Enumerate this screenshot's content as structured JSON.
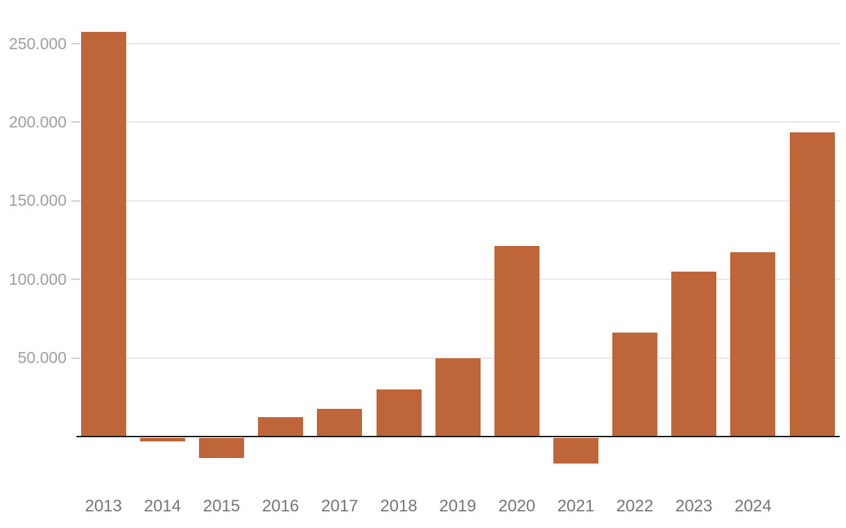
{
  "chart_data": {
    "type": "bar",
    "title": "",
    "xlabel": "",
    "ylabel": "",
    "categories": [
      "2013",
      "2014",
      "2015",
      "2016",
      "2017",
      "2018",
      "2019",
      "2020",
      "2021",
      "2022",
      "2023",
      "2024",
      ""
    ],
    "values": [
      257000,
      -2600,
      -12800,
      12000,
      17000,
      29500,
      49500,
      121000,
      -16600,
      65500,
      104500,
      117000,
      193000
    ],
    "ylim": [
      -20000,
      260000
    ],
    "grid": true,
    "legend": "none",
    "y_axis": {
      "tick_values": [
        50000,
        100000,
        150000,
        200000,
        250000
      ],
      "tick_labels": [
        "50.000",
        "100.000",
        "150.000",
        "200.000",
        "250.000"
      ]
    },
    "colors": {
      "bar": "#BE6539",
      "gridline": "#E8E8E8",
      "tick": "#CFCFCF",
      "baseline": "#1A1A1A",
      "y_label": "#9E9E9E",
      "x_label": "#757575",
      "background": "#FFFFFF"
    }
  }
}
